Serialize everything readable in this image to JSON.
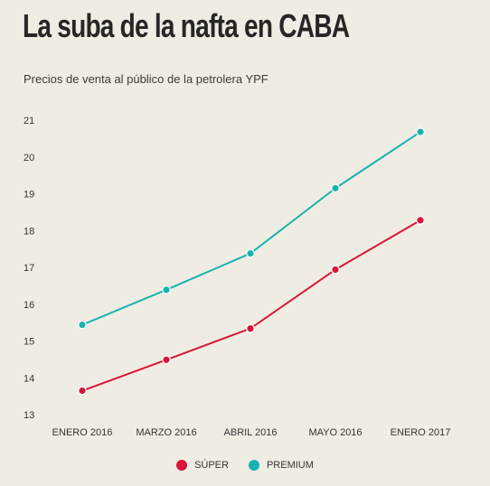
{
  "title": "La suba de la nafta en CABA",
  "subtitle": "Precios de venta al público de la petrolera YPF",
  "chart_data": {
    "type": "line",
    "categories": [
      "ENERO 2016",
      "MARZO 2016",
      "ABRIL 2016",
      "MAYO 2016",
      "ENERO 2017"
    ],
    "ylim": [
      13,
      21
    ],
    "yticks": [
      13,
      14,
      15,
      16,
      17,
      18,
      19,
      20,
      21
    ],
    "grid": false,
    "legend": "bottom-center",
    "series": [
      {
        "name": "SÚPER",
        "color": "#d8143a",
        "values": [
          13.65,
          14.49,
          15.34,
          16.94,
          18.28
        ]
      },
      {
        "name": "PREMIUM",
        "color": "#17b3b0",
        "values": [
          15.44,
          16.39,
          17.38,
          19.15,
          20.68
        ]
      }
    ]
  }
}
